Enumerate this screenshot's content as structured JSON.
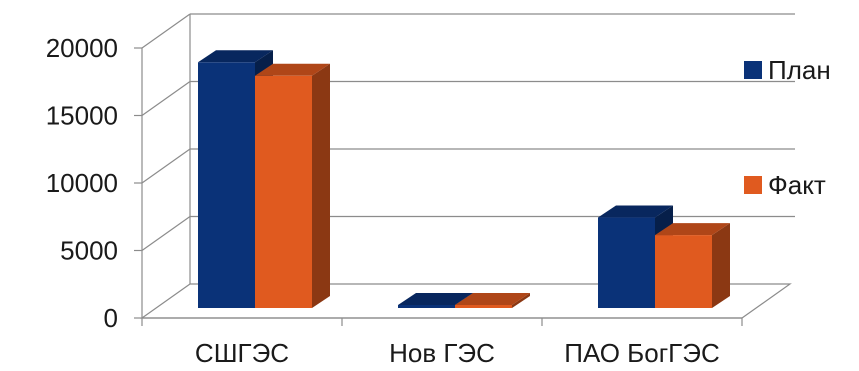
{
  "chart_data": {
    "type": "bar",
    "style": "3d-clustered-column",
    "categories": [
      "СШГЭС",
      "Нов ГЭС",
      "ПАО БогГЭС"
    ],
    "series": [
      {
        "name": "План",
        "color": "#0a3278",
        "values": [
          18200,
          0,
          6700
        ]
      },
      {
        "name": "Факт",
        "color": "#e05a1f",
        "values": [
          17200,
          0,
          5400
        ]
      }
    ],
    "y_ticks": [
      "0",
      "5000",
      "10000",
      "15000",
      "20000"
    ],
    "ylim": [
      0,
      20000
    ],
    "grid": true,
    "legend_position": "right",
    "title": "",
    "xlabel": "",
    "ylabel": ""
  }
}
